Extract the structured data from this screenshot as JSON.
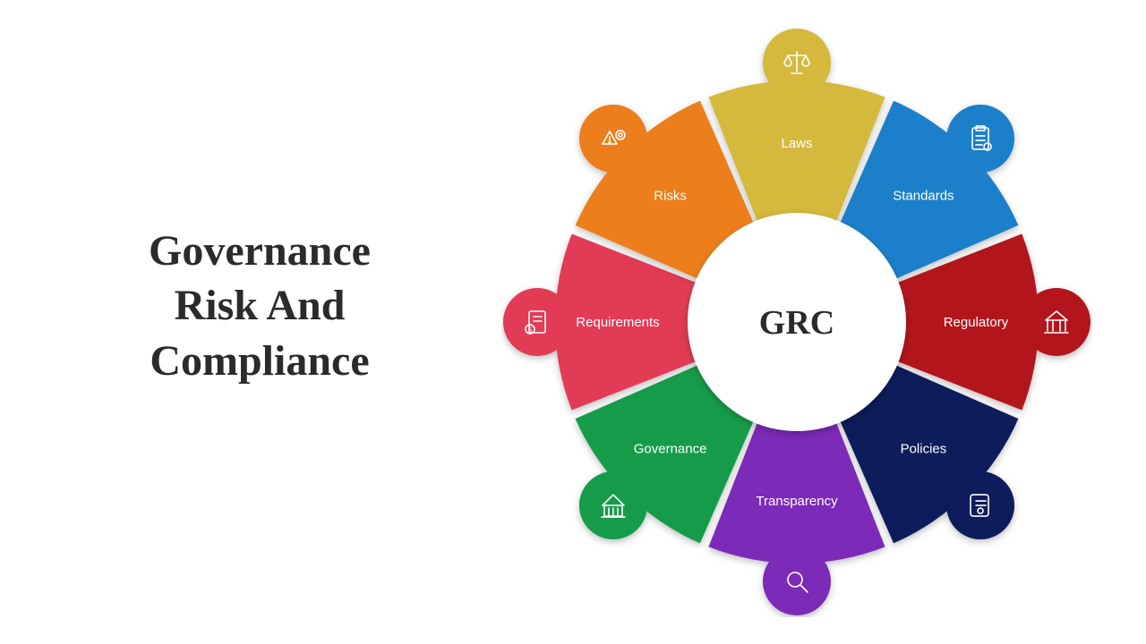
{
  "title": {
    "line1": "Governance",
    "line2": "Risk And",
    "line3": "Compliance",
    "color": "#2b2b2b",
    "fontsize": 48
  },
  "diagram": {
    "type": "radial-donut",
    "center_label": "GRC",
    "center_fontsize": 38,
    "center_bg": "#ffffff",
    "background": "#ffffff",
    "outer_radius": 270,
    "inner_radius": 120,
    "bump_radius": 38,
    "bump_distance": 290,
    "gap_deg": 2.2,
    "label_radius": 200,
    "label_fontsize": 15,
    "shadow_color": "#00000040",
    "segments": [
      {
        "label": "Laws",
        "color": "#d4b93c",
        "angle": -90,
        "icon": "scales"
      },
      {
        "label": "Standards",
        "color": "#1e7fc9",
        "angle": -45,
        "icon": "clipboard"
      },
      {
        "label": "Regulatory",
        "color": "#b2121c",
        "angle": 0,
        "icon": "institution"
      },
      {
        "label": "Policies",
        "color": "#0e1b5a",
        "angle": 45,
        "icon": "scroll"
      },
      {
        "label": "Transparency",
        "color": "#7b29b8",
        "angle": 90,
        "icon": "magnifier"
      },
      {
        "label": "Governance",
        "color": "#139c4a",
        "angle": 135,
        "icon": "building"
      },
      {
        "label": "Requirements",
        "color": "#e23a55",
        "angle": 180,
        "icon": "doc-money"
      },
      {
        "label": "Risks",
        "color": "#ec7e1f",
        "angle": 225,
        "icon": "warn-gear"
      }
    ]
  }
}
